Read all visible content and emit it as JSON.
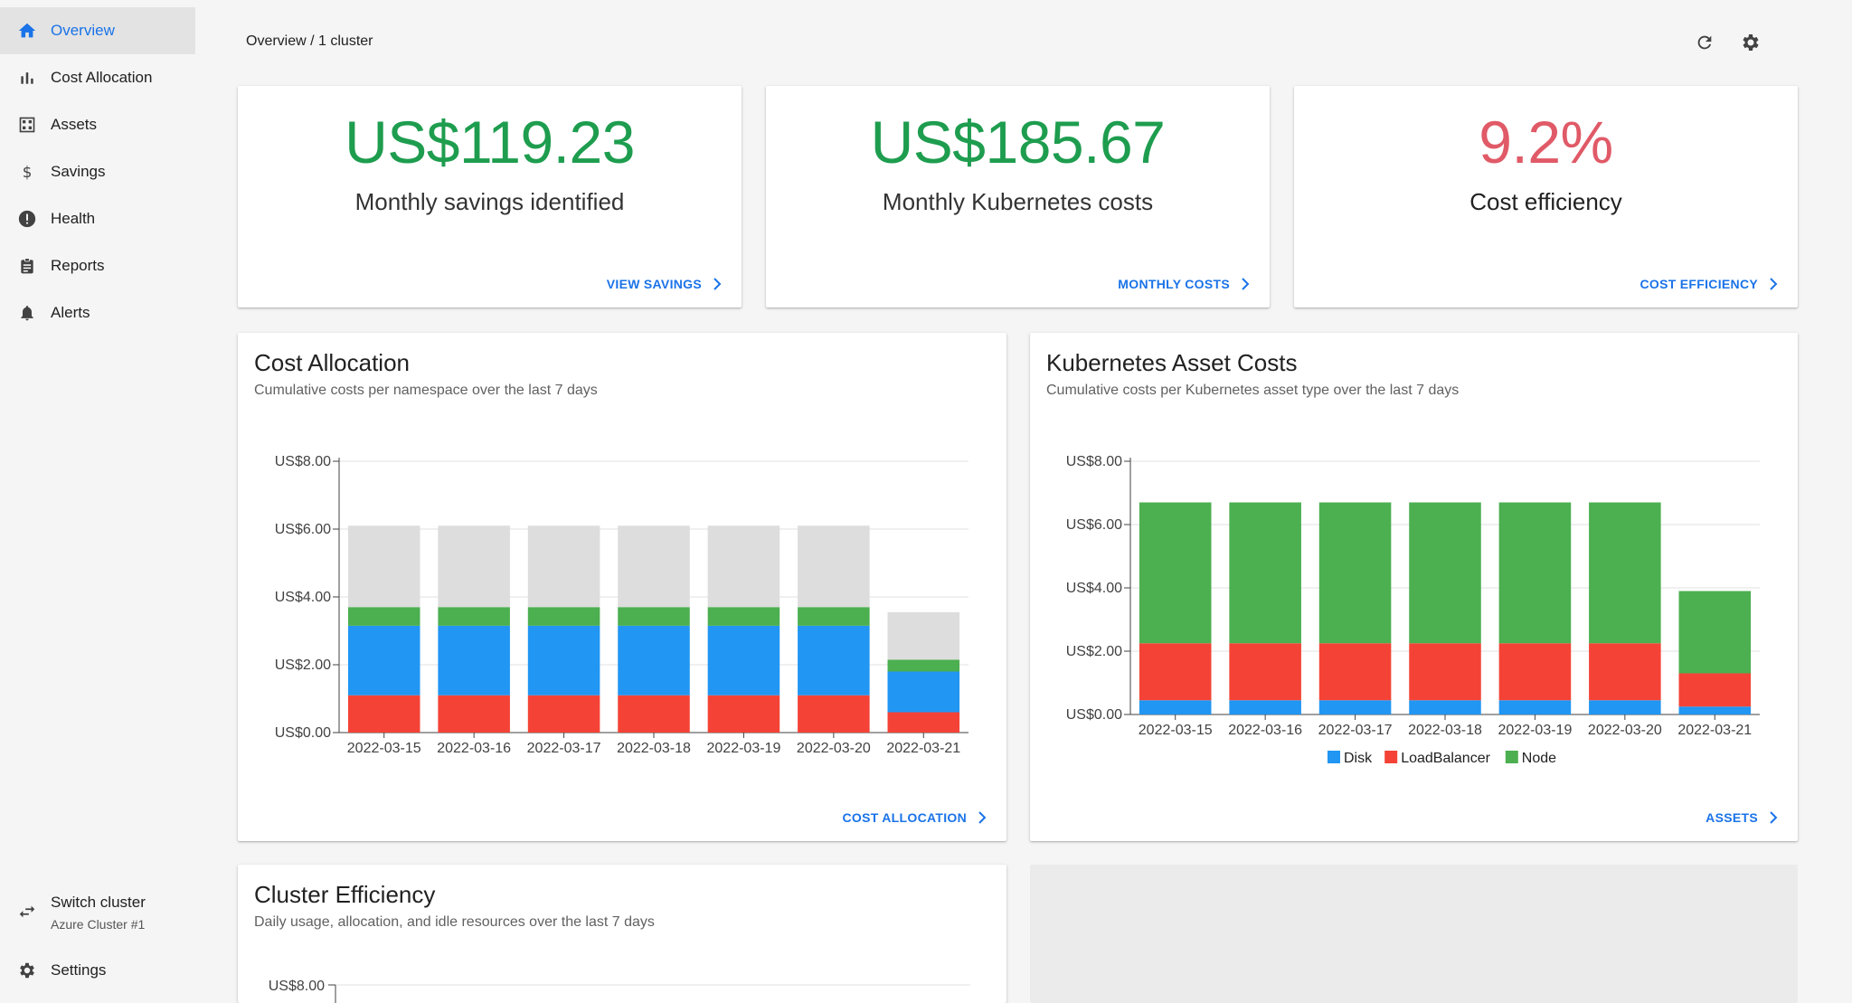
{
  "breadcrumb": "Overview / 1 cluster",
  "header_icons": [
    "refresh-icon",
    "gear-icon"
  ],
  "sidebar": {
    "items": [
      {
        "label": "Overview",
        "icon": "home-icon",
        "active": true
      },
      {
        "label": "Cost Allocation",
        "icon": "bar-chart-icon"
      },
      {
        "label": "Assets",
        "icon": "grid-icon"
      },
      {
        "label": "Savings",
        "icon": "dollar-icon"
      },
      {
        "label": "Health",
        "icon": "alert-circle-icon"
      },
      {
        "label": "Reports",
        "icon": "clipboard-icon"
      },
      {
        "label": "Alerts",
        "icon": "bell-icon"
      }
    ],
    "switch_cluster": {
      "label": "Switch cluster",
      "sub": "Azure Cluster #1"
    },
    "settings": {
      "label": "Settings"
    }
  },
  "stats": [
    {
      "value": "US$119.23",
      "label": "Monthly savings identified",
      "link": "VIEW SAVINGS",
      "color": "#1e9d4f"
    },
    {
      "value": "US$185.67",
      "label": "Monthly Kubernetes costs",
      "link": "MONTHLY COSTS",
      "color": "#1e9d4f"
    },
    {
      "value": "9.2%",
      "label": "Cost efficiency",
      "link": "COST EFFICIENCY",
      "color": "#e05a67"
    }
  ],
  "cost_allocation": {
    "title": "Cost Allocation",
    "subtitle": "Cumulative costs per namespace over the last 7 days",
    "link": "COST ALLOCATION"
  },
  "asset_costs": {
    "title": "Kubernetes Asset Costs",
    "subtitle": "Cumulative costs per Kubernetes asset type over the last 7 days",
    "link": "ASSETS"
  },
  "cluster_efficiency": {
    "title": "Cluster Efficiency",
    "subtitle": "Daily usage, allocation, and idle resources over the last 7 days",
    "tick": "US$8.00"
  },
  "chart_data": [
    {
      "type": "bar",
      "stacked": true,
      "categories": [
        "2022-03-15",
        "2022-03-16",
        "2022-03-17",
        "2022-03-18",
        "2022-03-19",
        "2022-03-20",
        "2022-03-21"
      ],
      "yticks": [
        "US$0.00",
        "US$2.00",
        "US$4.00",
        "US$6.00",
        "US$8.00"
      ],
      "ylim": [
        0,
        8
      ],
      "grid": true,
      "series": [
        {
          "values": [
            1.1,
            1.1,
            1.1,
            1.1,
            1.1,
            1.1,
            0.6
          ],
          "color": "#f44336"
        },
        {
          "values": [
            2.05,
            2.05,
            2.05,
            2.05,
            2.05,
            2.05,
            1.2
          ],
          "color": "#2196f3"
        },
        {
          "values": [
            0.55,
            0.55,
            0.55,
            0.55,
            0.55,
            0.55,
            0.35
          ],
          "color": "#4caf50"
        },
        {
          "values": [
            2.4,
            2.4,
            2.4,
            2.4,
            2.4,
            2.4,
            1.4
          ],
          "color": "#dddddd"
        }
      ]
    },
    {
      "type": "bar",
      "stacked": true,
      "categories": [
        "2022-03-15",
        "2022-03-16",
        "2022-03-17",
        "2022-03-18",
        "2022-03-19",
        "2022-03-20",
        "2022-03-21"
      ],
      "yticks": [
        "US$0.00",
        "US$2.00",
        "US$4.00",
        "US$6.00",
        "US$8.00"
      ],
      "ylim": [
        0,
        8
      ],
      "grid": true,
      "legend": "bottom",
      "series": [
        {
          "name": "Disk",
          "values": [
            0.45,
            0.45,
            0.45,
            0.45,
            0.45,
            0.45,
            0.25
          ],
          "color": "#2196f3"
        },
        {
          "name": "LoadBalancer",
          "values": [
            1.8,
            1.8,
            1.8,
            1.8,
            1.8,
            1.8,
            1.05
          ],
          "color": "#f44336"
        },
        {
          "name": "Node",
          "values": [
            4.45,
            4.45,
            4.45,
            4.45,
            4.45,
            4.45,
            2.6
          ],
          "color": "#4caf50"
        }
      ]
    }
  ]
}
